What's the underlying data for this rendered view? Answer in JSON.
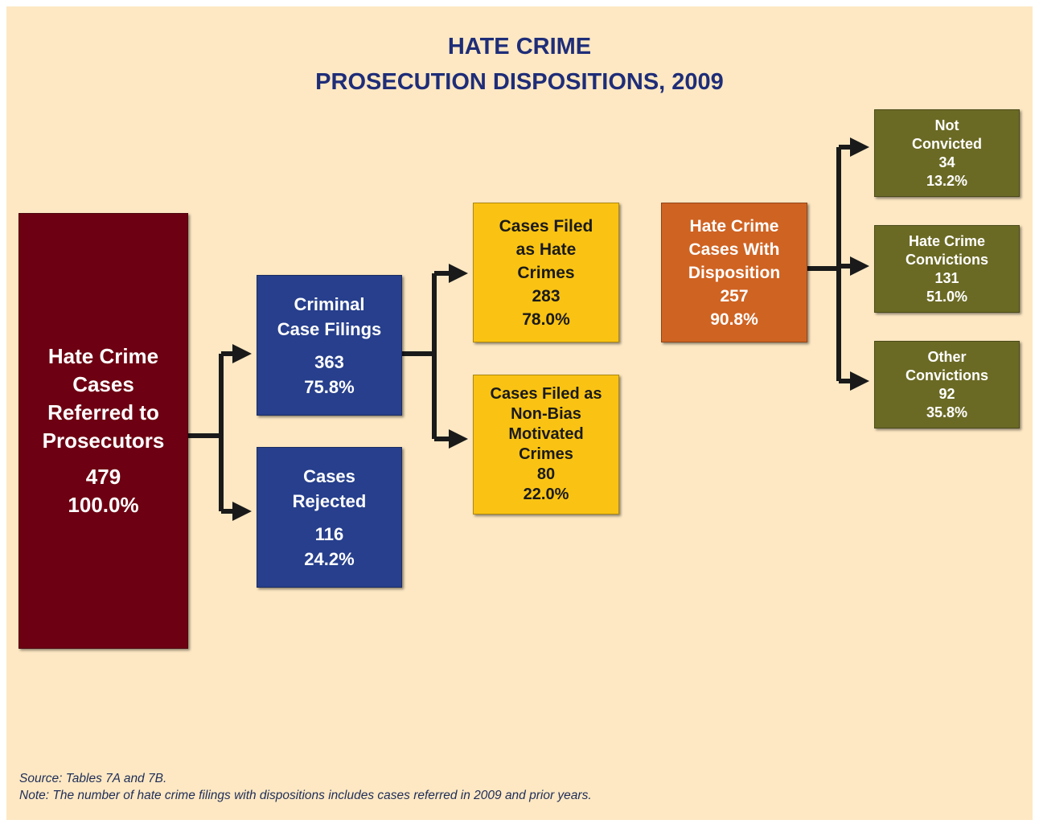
{
  "title": [
    "HATE CRIME",
    "PROSECUTION DISPOSITIONS, 2009"
  ],
  "nodes": [
    {
      "label": [
        "Hate Crime",
        "Cases",
        "Referred to",
        "Prosecutors"
      ],
      "count": "479",
      "percent": "100.0%"
    },
    {
      "label": [
        "Criminal",
        "Case Filings"
      ],
      "count": "363",
      "percent": "75.8%"
    },
    {
      "label": [
        "Cases",
        "Rejected"
      ],
      "count": "116",
      "percent": "24.2%"
    },
    {
      "label": [
        "Cases Filed",
        "as Hate",
        "Crimes"
      ],
      "count": "283",
      "percent": "78.0%"
    },
    {
      "label": [
        "Cases Filed as",
        "Non-Bias",
        "Motivated",
        "Crimes"
      ],
      "count": "80",
      "percent": "22.0%"
    },
    {
      "label": [
        "Hate Crime",
        "Cases With",
        "Disposition"
      ],
      "count": "257",
      "percent": "90.8%"
    },
    {
      "label": [
        "Not",
        "Convicted"
      ],
      "count": "34",
      "percent": "13.2%"
    },
    {
      "label": [
        "Hate Crime",
        "Convictions"
      ],
      "count": "131",
      "percent": "51.0%"
    },
    {
      "label": [
        "Other",
        "Convictions"
      ],
      "count": "92",
      "percent": "35.8%"
    }
  ],
  "footer": [
    "Source: Tables 7A and 7B.",
    "Note: The number of hate crime filings with dispositions includes cases referred in 2009 and prior years."
  ]
}
